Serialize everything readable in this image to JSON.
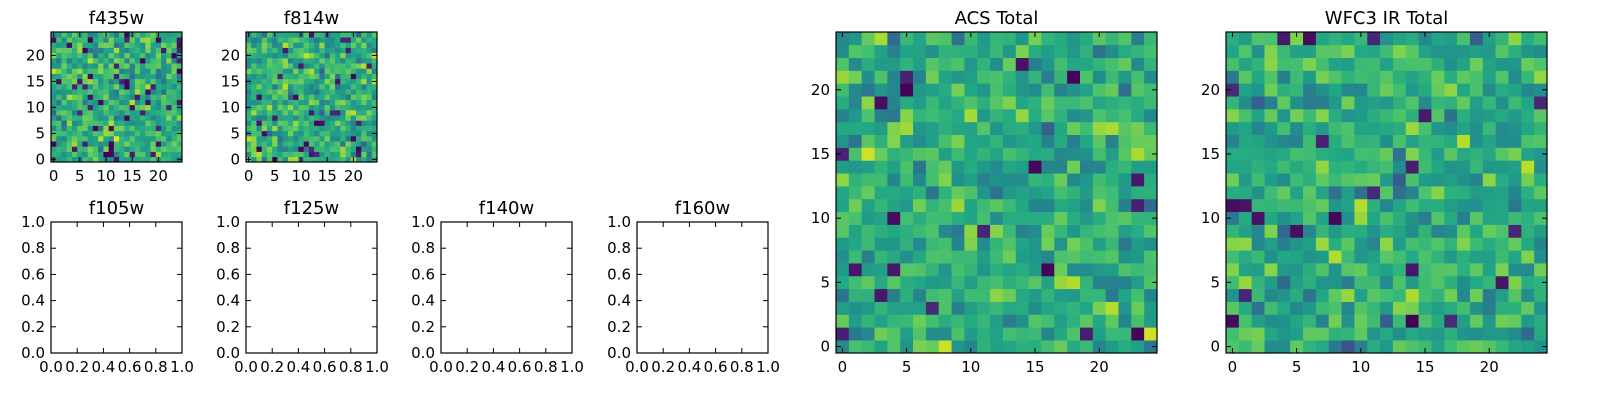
{
  "chart_data": [
    {
      "id": "f435w",
      "type": "heatmap",
      "title": "f435w",
      "grid_size": 25,
      "xlim": [
        -0.5,
        24.5
      ],
      "ylim": [
        -0.5,
        24.5
      ],
      "xticks": [
        0,
        5,
        10,
        15,
        20
      ],
      "yticks": [
        0,
        5,
        10,
        15,
        20
      ],
      "colormap": "viridis",
      "seed": 11,
      "outliers": 0.06,
      "values": "random pixel field (25x25), values not individually labeled"
    },
    {
      "id": "f814w",
      "type": "heatmap",
      "title": "f814w",
      "grid_size": 25,
      "xlim": [
        -0.5,
        24.5
      ],
      "ylim": [
        -0.5,
        24.5
      ],
      "xticks": [
        0,
        5,
        10,
        15,
        20
      ],
      "yticks": [
        0,
        5,
        10,
        15,
        20
      ],
      "colormap": "viridis",
      "seed": 29,
      "outliers": 0.06,
      "values": "random pixel field (25x25), values not individually labeled"
    },
    {
      "id": "f105w",
      "type": "empty",
      "title": "f105w",
      "xlim": [
        0,
        1
      ],
      "ylim": [
        0,
        1
      ],
      "xticks": [
        "0.0",
        "0.2",
        "0.4",
        "0.6",
        "0.8",
        "1.0"
      ],
      "yticks": [
        "0.0",
        "0.2",
        "0.4",
        "0.6",
        "0.8",
        "1.0"
      ]
    },
    {
      "id": "f125w",
      "type": "empty",
      "title": "f125w",
      "xlim": [
        0,
        1
      ],
      "ylim": [
        0,
        1
      ],
      "xticks": [
        "0.0",
        "0.2",
        "0.4",
        "0.6",
        "0.8",
        "1.0"
      ],
      "yticks": [
        "0.0",
        "0.2",
        "0.4",
        "0.6",
        "0.8",
        "1.0"
      ]
    },
    {
      "id": "f140w",
      "type": "empty",
      "title": "f140w",
      "xlim": [
        0,
        1
      ],
      "ylim": [
        0,
        1
      ],
      "xticks": [
        "0.0",
        "0.2",
        "0.4",
        "0.6",
        "0.8",
        "1.0"
      ],
      "yticks": [
        "0.0",
        "0.2",
        "0.4",
        "0.6",
        "0.8",
        "1.0"
      ]
    },
    {
      "id": "f160w",
      "type": "empty",
      "title": "f160w",
      "xlim": [
        0,
        1
      ],
      "ylim": [
        0,
        1
      ],
      "xticks": [
        "0.0",
        "0.2",
        "0.4",
        "0.6",
        "0.8",
        "1.0"
      ],
      "yticks": [
        "0.0",
        "0.2",
        "0.4",
        "0.6",
        "0.8",
        "1.0"
      ]
    },
    {
      "id": "acs_total",
      "type": "heatmap",
      "title": "ACS Total",
      "grid_size": 25,
      "xlim": [
        -0.5,
        24.5
      ],
      "ylim": [
        -0.5,
        24.5
      ],
      "xticks": [
        0,
        5,
        10,
        15,
        20
      ],
      "yticks": [
        0,
        5,
        10,
        15,
        20
      ],
      "colormap": "viridis",
      "seed": 47,
      "outliers": 0.03,
      "values": "random pixel field (25x25), values not individually labeled"
    },
    {
      "id": "wfc3_ir_total",
      "type": "heatmap",
      "title": "WFC3 IR Total",
      "grid_size": 25,
      "xlim": [
        -0.5,
        24.5
      ],
      "ylim": [
        -0.5,
        24.5
      ],
      "xticks": [
        0,
        5,
        10,
        15,
        20
      ],
      "yticks": [
        0,
        5,
        10,
        15,
        20
      ],
      "colormap": "viridis",
      "seed": 83,
      "outliers": 0.025,
      "values": "random pixel field (25x25), values not individually labeled"
    }
  ]
}
